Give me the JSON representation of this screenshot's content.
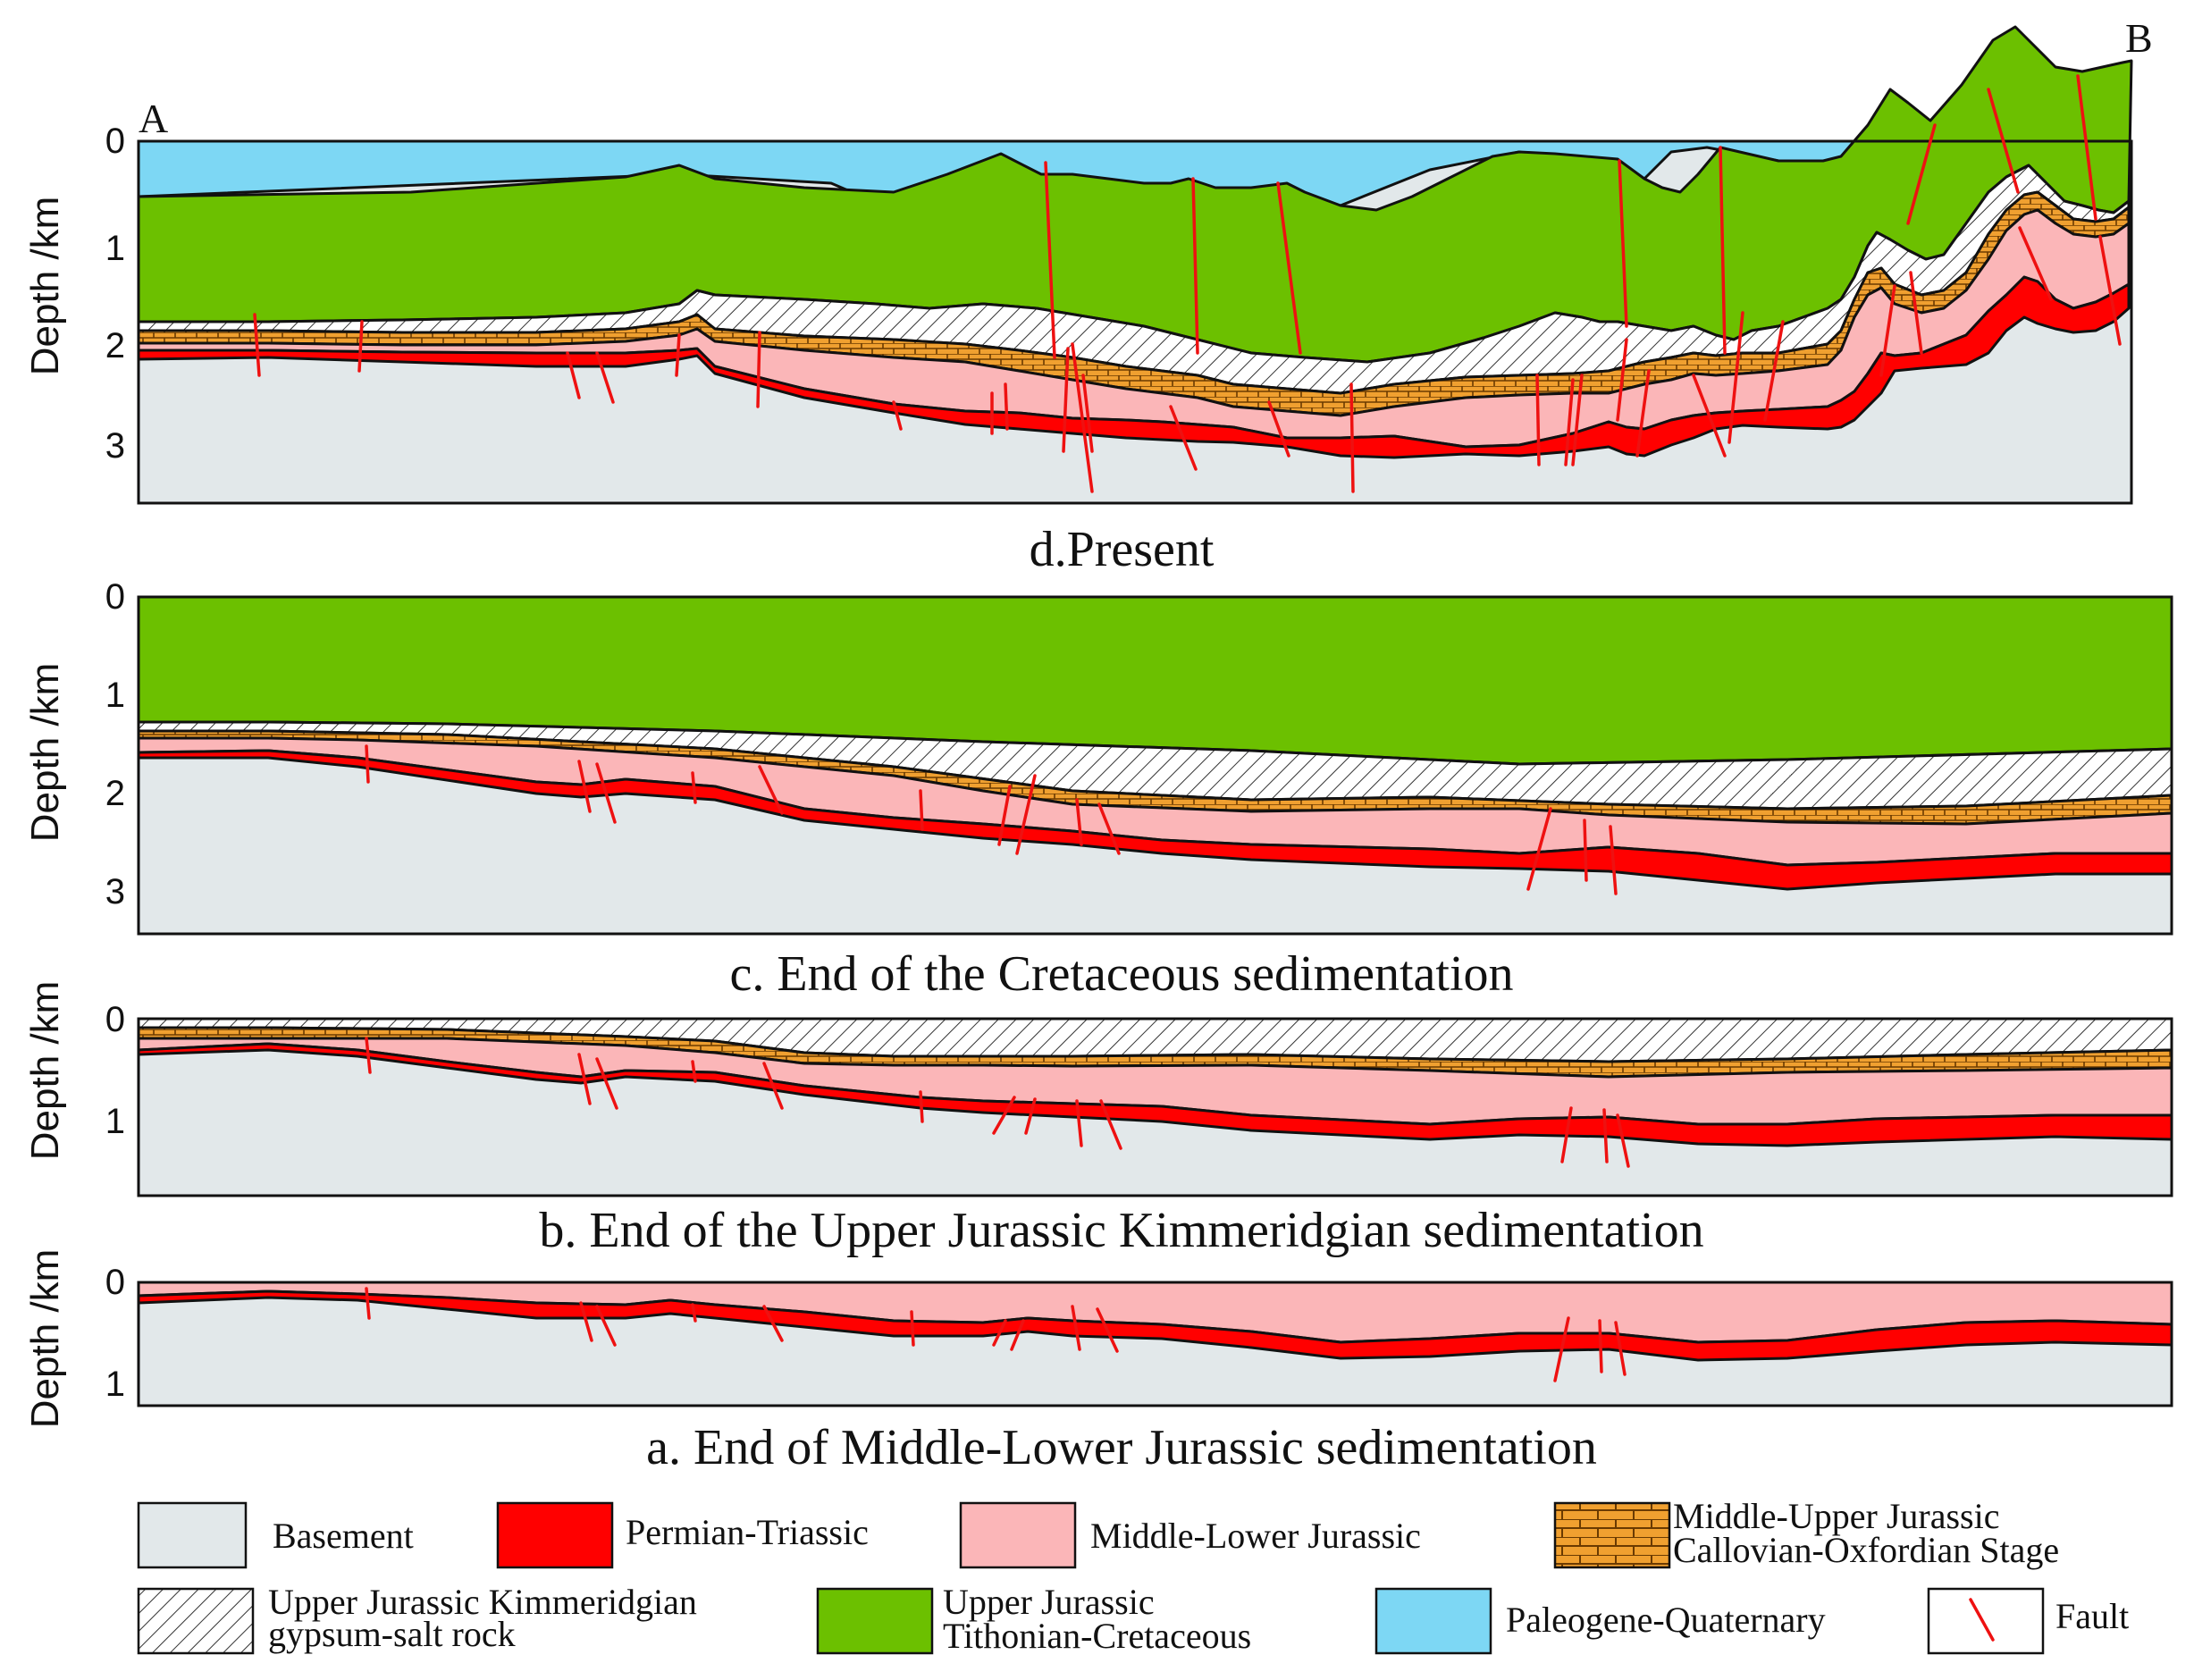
{
  "figure": {
    "panels": [
      {
        "id": "d",
        "caption": "d.Present",
        "y_label": "Depth /km",
        "ticks": [
          "0",
          "1",
          "2",
          "3"
        ],
        "end_labels": {
          "left": "A",
          "right": "B"
        }
      },
      {
        "id": "c",
        "caption": "c. End of the Cretaceous sedimentation",
        "y_label": "Depth /km",
        "ticks": [
          "0",
          "1",
          "2",
          "3"
        ]
      },
      {
        "id": "b",
        "caption": "b. End of the Upper Jurassic Kimmeridgian sedimentation",
        "y_label": "Depth /km",
        "ticks": [
          "0",
          "1"
        ]
      },
      {
        "id": "a",
        "caption": "a. End of Middle-Lower Jurassic sedimentation",
        "y_label": "Depth /km",
        "ticks": [
          "0",
          "1"
        ]
      }
    ],
    "legend": [
      {
        "key": "basement",
        "lines": [
          "Basement"
        ],
        "color": "#e2e8ea"
      },
      {
        "key": "permian",
        "lines": [
          "Permian-Triassic"
        ],
        "color": "#ff0000"
      },
      {
        "key": "mlj",
        "lines": [
          "Middle-Lower Jurassic"
        ],
        "color": "#fbb6b8"
      },
      {
        "key": "muj",
        "lines": [
          "Middle-Upper Jurassic",
          "Callovian-Oxfordian Stage"
        ],
        "color": "#f0a030"
      },
      {
        "key": "salt",
        "lines": [
          "Upper Jurassic Kimmeridgian",
          "gypsum-salt rock"
        ],
        "color": "#ffffff"
      },
      {
        "key": "tith",
        "lines": [
          "Upper Jurassic",
          "Tithonian-Cretaceous"
        ],
        "color": "#6cc000"
      },
      {
        "key": "paleo",
        "lines": [
          "Paleogene-Quaternary"
        ],
        "color": "#7dd7f4"
      },
      {
        "key": "fault",
        "lines": [
          "Fault"
        ],
        "color": "#ee1111"
      }
    ]
  }
}
